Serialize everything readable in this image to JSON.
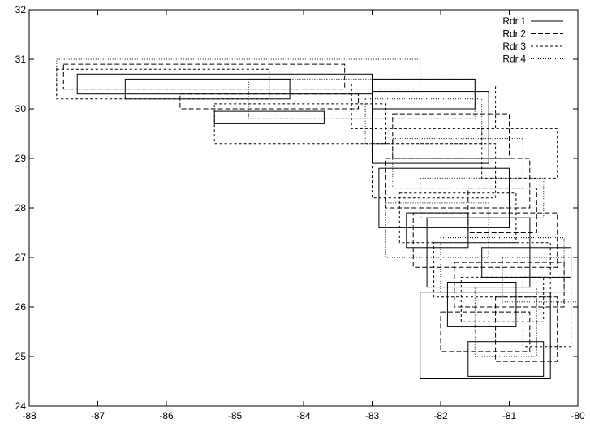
{
  "chart_data": {
    "type": "rectangles",
    "title": "",
    "xlabel": "",
    "ylabel": "",
    "xlim": [
      -88,
      -80
    ],
    "ylim": [
      24,
      32
    ],
    "xticks": [
      -88,
      -87,
      -86,
      -85,
      -84,
      -83,
      -82,
      -81,
      -80
    ],
    "yticks": [
      24,
      25,
      26,
      27,
      28,
      29,
      30,
      31,
      32
    ],
    "grid": false,
    "legend_position": "top-right",
    "series": [
      {
        "name": "Rdr.1",
        "line_style": "solid",
        "rects": [
          [
            -87.3,
            30.3,
            -83.0,
            30.7
          ],
          [
            -86.6,
            30.2,
            -84.2,
            30.6
          ],
          [
            -85.3,
            29.7,
            -83.7,
            29.95
          ],
          [
            -83.0,
            28.9,
            -81.3,
            30.35
          ],
          [
            -82.9,
            27.6,
            -81.0,
            28.8
          ],
          [
            -82.2,
            26.4,
            -80.7,
            27.8
          ],
          [
            -81.9,
            25.6,
            -80.9,
            26.5
          ],
          [
            -82.3,
            24.55,
            -80.4,
            26.3
          ],
          [
            -81.6,
            24.6,
            -80.5,
            25.3
          ],
          [
            -81.4,
            26.6,
            -80.1,
            27.2
          ],
          [
            -82.5,
            27.2,
            -81.6,
            27.9
          ],
          [
            -83.0,
            30.0,
            -81.5,
            30.6
          ]
        ]
      },
      {
        "name": "Rdr.2",
        "line_style": "dashed",
        "rects": [
          [
            -87.5,
            30.4,
            -83.4,
            30.9
          ],
          [
            -85.8,
            30.0,
            -83.2,
            30.3
          ],
          [
            -82.7,
            29.0,
            -81.0,
            29.9
          ],
          [
            -82.8,
            28.0,
            -80.7,
            29.0
          ],
          [
            -82.4,
            26.8,
            -80.3,
            27.9
          ],
          [
            -81.8,
            26.0,
            -80.2,
            26.9
          ],
          [
            -81.2,
            24.9,
            -80.3,
            26.2
          ],
          [
            -82.0,
            25.1,
            -80.7,
            25.9
          ],
          [
            -81.6,
            27.5,
            -80.6,
            28.4
          ]
        ]
      },
      {
        "name": "Rdr.3",
        "line_style": "short-dashed",
        "rects": [
          [
            -87.6,
            30.2,
            -84.5,
            30.8
          ],
          [
            -85.3,
            29.3,
            -82.8,
            30.1
          ],
          [
            -83.3,
            29.6,
            -81.2,
            30.5
          ],
          [
            -83.0,
            28.2,
            -81.2,
            29.3
          ],
          [
            -82.6,
            27.3,
            -80.9,
            28.3
          ],
          [
            -82.1,
            26.2,
            -80.4,
            27.3
          ],
          [
            -81.7,
            25.7,
            -80.5,
            26.6
          ],
          [
            -80.8,
            25.2,
            -80.1,
            26.6
          ],
          [
            -81.4,
            28.6,
            -80.3,
            29.6
          ]
        ]
      },
      {
        "name": "Rdr.4",
        "line_style": "dotted",
        "rects": [
          [
            -87.6,
            30.4,
            -82.3,
            31.0
          ],
          [
            -84.8,
            29.8,
            -81.5,
            30.6
          ],
          [
            -83.1,
            29.3,
            -81.4,
            30.2
          ],
          [
            -82.7,
            28.4,
            -80.8,
            29.4
          ],
          [
            -82.8,
            27.0,
            -81.3,
            28.1
          ],
          [
            -82.0,
            26.3,
            -80.2,
            27.4
          ],
          [
            -81.5,
            25.0,
            -80.6,
            26.4
          ],
          [
            -81.1,
            26.1,
            -80.0,
            27.0
          ],
          [
            -82.3,
            27.8,
            -80.5,
            28.6
          ]
        ]
      }
    ]
  }
}
